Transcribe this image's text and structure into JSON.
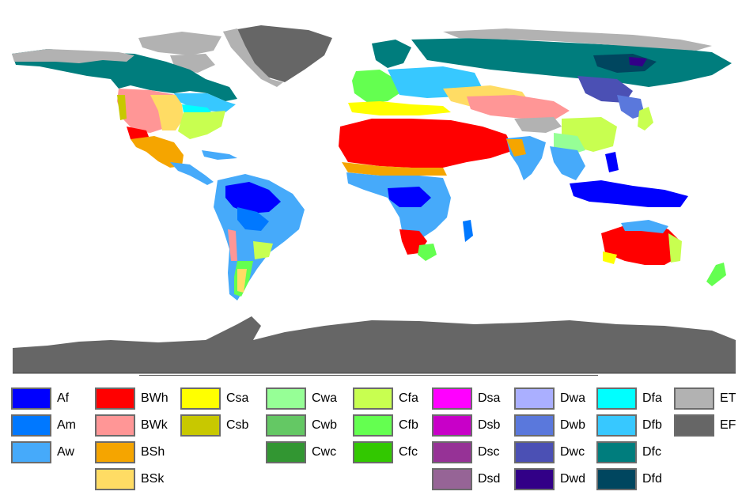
{
  "colors": {
    "ocean": "#ffffff",
    "ice": "#666666",
    "border": "#7a7a7a"
  },
  "legend": [
    {
      "code": "Af",
      "color": "#0000fe"
    },
    {
      "code": "Am",
      "color": "#0078ff"
    },
    {
      "code": "Aw",
      "color": "#46aafa"
    },
    {
      "code": "BWh",
      "color": "#ff0000"
    },
    {
      "code": "BWk",
      "color": "#ff9696"
    },
    {
      "code": "BSh",
      "color": "#f5a500"
    },
    {
      "code": "BSk",
      "color": "#ffdc64"
    },
    {
      "code": "Csa",
      "color": "#ffff00"
    },
    {
      "code": "Csb",
      "color": "#c8c800"
    },
    {
      "code": "Cwa",
      "color": "#96ff96"
    },
    {
      "code": "Cwb",
      "color": "#64c864"
    },
    {
      "code": "Cwc",
      "color": "#329632"
    },
    {
      "code": "Cfa",
      "color": "#c8ff50"
    },
    {
      "code": "Cfb",
      "color": "#64ff50"
    },
    {
      "code": "Cfc",
      "color": "#32c800"
    },
    {
      "code": "Dsa",
      "color": "#ff00ff"
    },
    {
      "code": "Dsb",
      "color": "#c800c8"
    },
    {
      "code": "Dsc",
      "color": "#963296"
    },
    {
      "code": "Dsd",
      "color": "#966496"
    },
    {
      "code": "Dwa",
      "color": "#aaafff"
    },
    {
      "code": "Dwb",
      "color": "#5a78dc"
    },
    {
      "code": "Dwc",
      "color": "#4b50b4"
    },
    {
      "code": "Dwd",
      "color": "#320087"
    },
    {
      "code": "Dfa",
      "color": "#00ffff"
    },
    {
      "code": "Dfb",
      "color": "#37c8ff"
    },
    {
      "code": "Dfc",
      "color": "#007d7d"
    },
    {
      "code": "Dfd",
      "color": "#00465f"
    },
    {
      "code": "ET",
      "color": "#b2b2b2"
    },
    {
      "code": "EF",
      "color": "#666666"
    }
  ]
}
